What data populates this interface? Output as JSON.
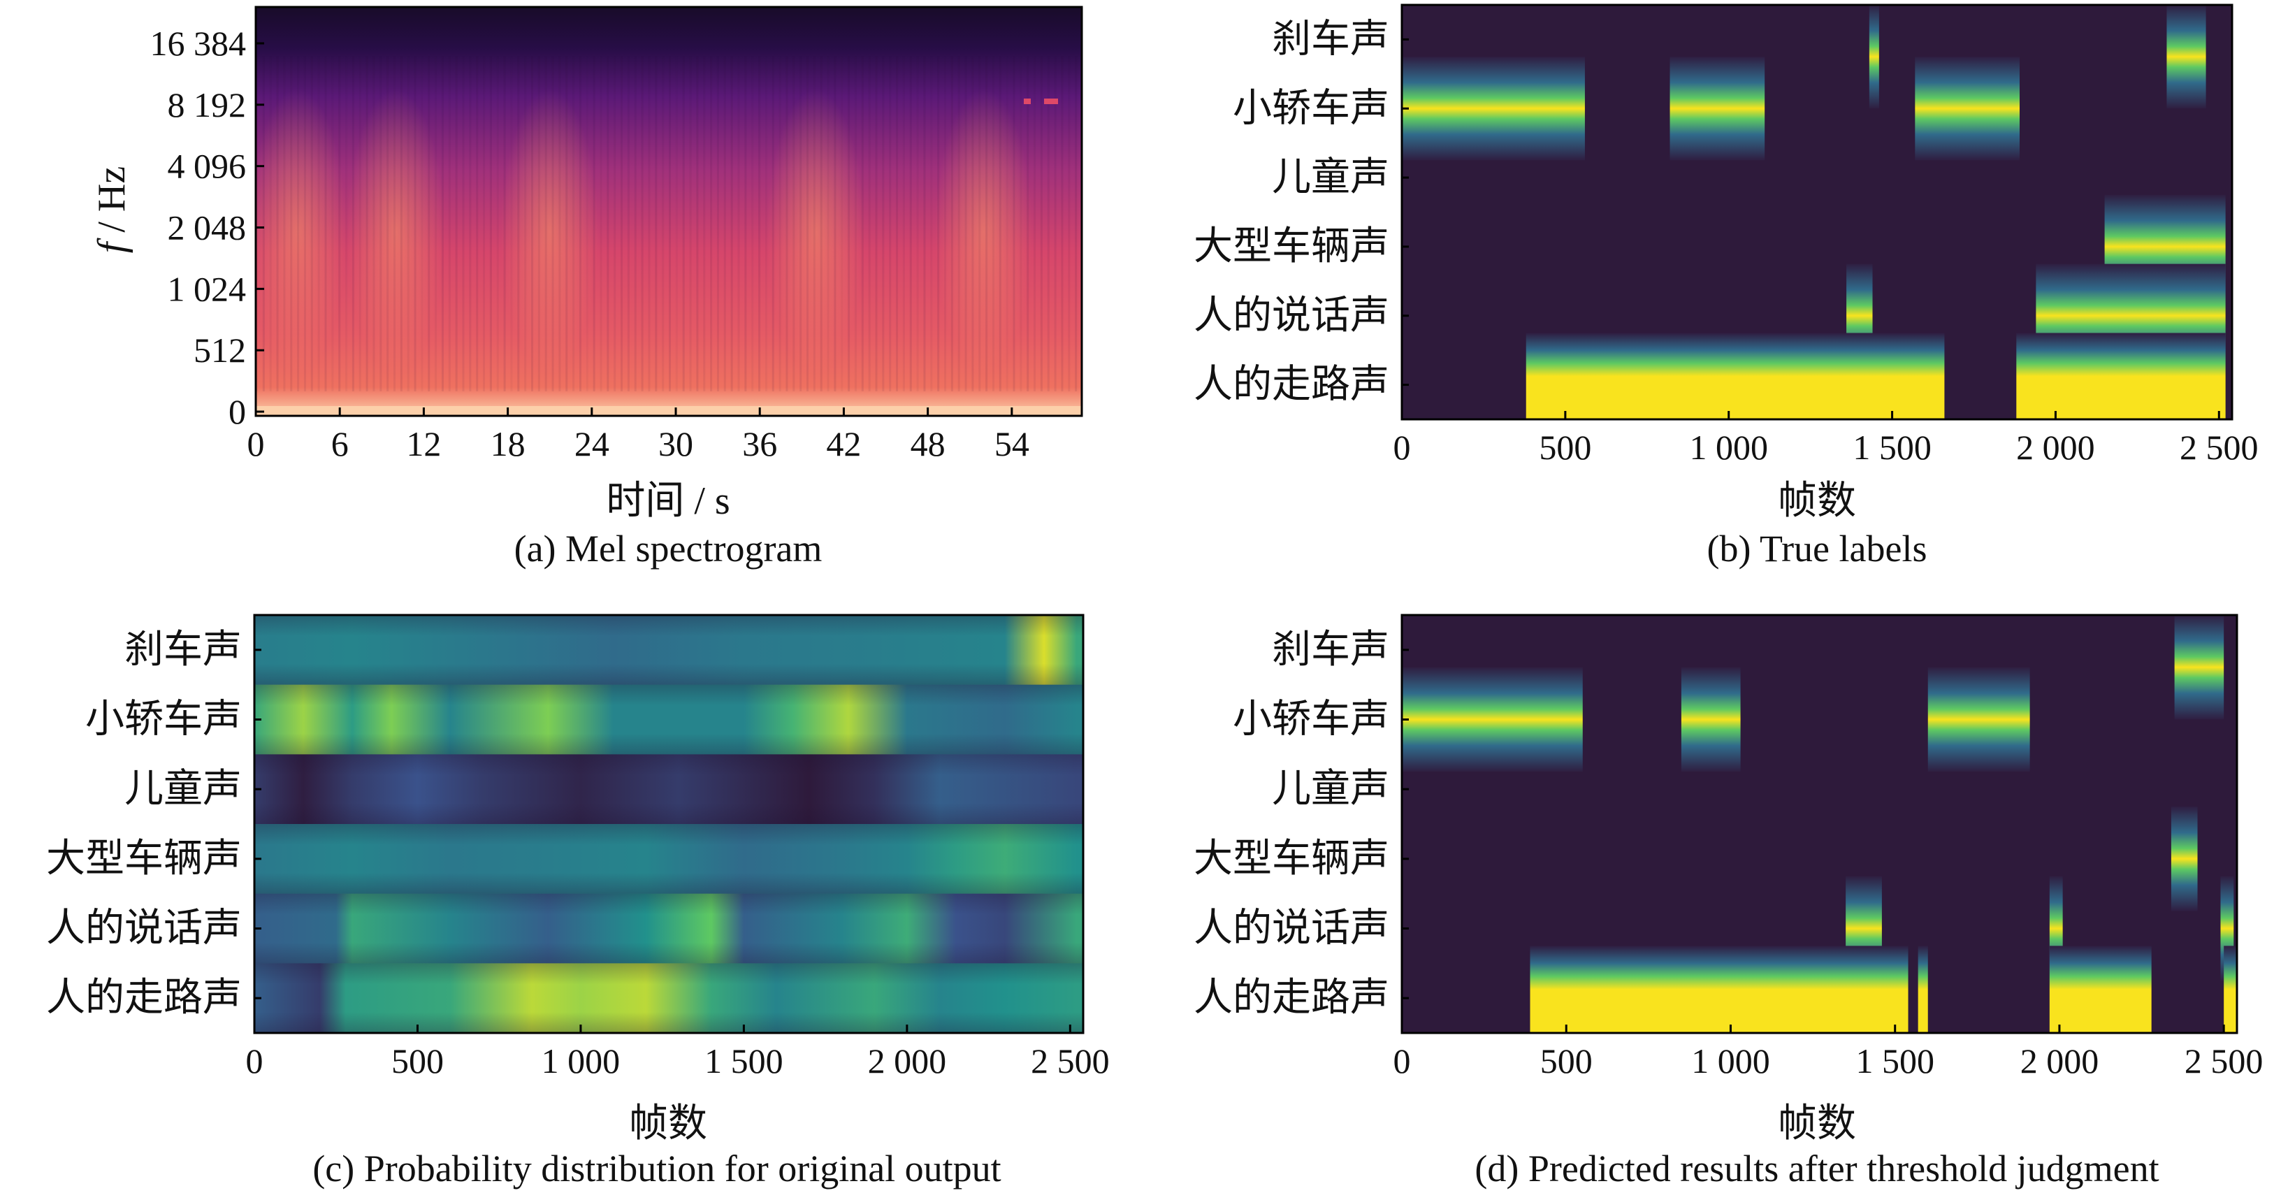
{
  "colors": {
    "background": "#ffffff",
    "viridis_low": "#2e1a3b",
    "viridis_high": "#f9e31e",
    "magma_low": "#120b1c",
    "magma_high": "#fbe7c5"
  },
  "chart_data": [
    {
      "id": "a",
      "type": "heatmap",
      "caption": "(a) Mel spectrogram",
      "xlabel": "时间 / s",
      "ylabel": "f / Hz",
      "ylabel_italic_part": "f",
      "ylabel_rest": " / Hz",
      "xlim": [
        0,
        59
      ],
      "xticks": [
        "0",
        "6",
        "12",
        "18",
        "24",
        "30",
        "36",
        "42",
        "48",
        "54"
      ],
      "xtick_values": [
        0,
        6,
        12,
        18,
        24,
        30,
        36,
        42,
        48,
        54
      ],
      "yticks": [
        "0",
        "512",
        "1 024",
        "2 048",
        "4 096",
        "8 192",
        "16 384"
      ],
      "ytick_values": [
        0,
        512,
        1024,
        2048,
        4096,
        8192,
        16384
      ],
      "colormap": "magma",
      "energy_peaks_s": [
        3,
        10,
        21,
        40,
        52
      ]
    },
    {
      "id": "b",
      "type": "heatmap",
      "caption": "(b) True labels",
      "xlabel": "帧数",
      "xlim": [
        0,
        2540
      ],
      "xticks": [
        "0",
        "500",
        "1 000",
        "1 500",
        "2 000",
        "2 500"
      ],
      "xtick_values": [
        0,
        500,
        1000,
        1500,
        2000,
        2500
      ],
      "categories": [
        "刹车声",
        "小轿车声",
        "儿童声",
        "大型车辆声",
        "人的说话声",
        "人的走路声"
      ],
      "colormap": "viridis",
      "active_segments": [
        {
          "category": "刹车声",
          "start": 1430,
          "end": 1460
        },
        {
          "category": "刹车声",
          "start": 2340,
          "end": 2460
        },
        {
          "category": "小轿车声",
          "start": 0,
          "end": 560
        },
        {
          "category": "小轿车声",
          "start": 820,
          "end": 1110
        },
        {
          "category": "小轿车声",
          "start": 1570,
          "end": 1890
        },
        {
          "category": "大型车辆声",
          "start": 2150,
          "end": 2520
        },
        {
          "category": "人的说话声",
          "start": 1360,
          "end": 1440
        },
        {
          "category": "人的说话声",
          "start": 1940,
          "end": 2520
        },
        {
          "category": "人的走路声",
          "start": 380,
          "end": 1660
        },
        {
          "category": "人的走路声",
          "start": 1880,
          "end": 2520
        }
      ]
    },
    {
      "id": "c",
      "type": "heatmap",
      "caption": "(c) Probability distribution for original output",
      "xlabel": "帧数",
      "xlim": [
        0,
        2540
      ],
      "xticks": [
        "0",
        "500",
        "1 000",
        "1 500",
        "2 000",
        "2 500"
      ],
      "xtick_values": [
        0,
        500,
        1000,
        1500,
        2000,
        2500
      ],
      "categories": [
        "刹车声",
        "小轿车声",
        "儿童声",
        "大型车辆声",
        "人的说话声",
        "人的走路声"
      ],
      "colormap": "viridis",
      "probability_profiles": [
        {
          "category": "刹车声",
          "points": [
            [
              0,
              0.42
            ],
            [
              300,
              0.45
            ],
            [
              700,
              0.4
            ],
            [
              1100,
              0.35
            ],
            [
              1500,
              0.4
            ],
            [
              1900,
              0.42
            ],
            [
              2300,
              0.45
            ],
            [
              2420,
              0.95
            ],
            [
              2520,
              0.6
            ]
          ]
        },
        {
          "category": "小轿车声",
          "points": [
            [
              0,
              0.6
            ],
            [
              150,
              0.85
            ],
            [
              300,
              0.55
            ],
            [
              420,
              0.8
            ],
            [
              600,
              0.45
            ],
            [
              900,
              0.8
            ],
            [
              1100,
              0.45
            ],
            [
              1500,
              0.45
            ],
            [
              1650,
              0.65
            ],
            [
              1820,
              0.88
            ],
            [
              2000,
              0.4
            ],
            [
              2300,
              0.35
            ],
            [
              2520,
              0.45
            ]
          ]
        },
        {
          "category": "儿童声",
          "points": [
            [
              0,
              0.15
            ],
            [
              150,
              0.02
            ],
            [
              300,
              0.15
            ],
            [
              500,
              0.25
            ],
            [
              700,
              0.15
            ],
            [
              1000,
              0.05
            ],
            [
              1300,
              0.15
            ],
            [
              1700,
              0.0
            ],
            [
              1900,
              0.1
            ],
            [
              2100,
              0.3
            ],
            [
              2520,
              0.2
            ]
          ]
        },
        {
          "category": "大型车辆声",
          "points": [
            [
              0,
              0.4
            ],
            [
              300,
              0.45
            ],
            [
              600,
              0.4
            ],
            [
              900,
              0.42
            ],
            [
              1200,
              0.45
            ],
            [
              1500,
              0.35
            ],
            [
              1800,
              0.4
            ],
            [
              2000,
              0.45
            ],
            [
              2150,
              0.55
            ],
            [
              2300,
              0.62
            ],
            [
              2520,
              0.5
            ]
          ]
        },
        {
          "category": "人的说话声",
          "points": [
            [
              0,
              0.3
            ],
            [
              250,
              0.35
            ],
            [
              300,
              0.6
            ],
            [
              600,
              0.45
            ],
            [
              900,
              0.3
            ],
            [
              1200,
              0.5
            ],
            [
              1400,
              0.75
            ],
            [
              1500,
              0.3
            ],
            [
              1800,
              0.45
            ],
            [
              2000,
              0.62
            ],
            [
              2150,
              0.25
            ],
            [
              2300,
              0.2
            ],
            [
              2520,
              0.6
            ]
          ]
        },
        {
          "category": "人的走路声",
          "points": [
            [
              0,
              0.3
            ],
            [
              200,
              0.15
            ],
            [
              280,
              0.55
            ],
            [
              600,
              0.6
            ],
            [
              850,
              0.9
            ],
            [
              1000,
              0.85
            ],
            [
              1200,
              0.9
            ],
            [
              1400,
              0.6
            ],
            [
              1600,
              0.45
            ],
            [
              1900,
              0.6
            ],
            [
              2100,
              0.45
            ],
            [
              2300,
              0.5
            ],
            [
              2520,
              0.55
            ]
          ]
        }
      ]
    },
    {
      "id": "d",
      "type": "heatmap",
      "caption": "(d) Predicted results after threshold judgment",
      "xlabel": "帧数",
      "xlim": [
        0,
        2540
      ],
      "xticks": [
        "0",
        "500",
        "1 000",
        "1 500",
        "2 000",
        "2 500"
      ],
      "xtick_values": [
        0,
        500,
        1000,
        1500,
        2000,
        2500
      ],
      "categories": [
        "刹车声",
        "小轿车声",
        "儿童声",
        "大型车辆声",
        "人的说话声",
        "人的走路声"
      ],
      "colormap": "viridis",
      "active_segments": [
        {
          "category": "刹车声",
          "start": 2350,
          "end": 2500
        },
        {
          "category": "小轿车声",
          "start": 0,
          "end": 550
        },
        {
          "category": "小轿车声",
          "start": 850,
          "end": 1030
        },
        {
          "category": "小轿车声",
          "start": 1600,
          "end": 1910
        },
        {
          "category": "大型车辆声",
          "start": 2340,
          "end": 2420
        },
        {
          "category": "人的说话声",
          "start": 1350,
          "end": 1460
        },
        {
          "category": "人的说话声",
          "start": 1970,
          "end": 2010
        },
        {
          "category": "人的说话声",
          "start": 2490,
          "end": 2530
        },
        {
          "category": "人的走路声",
          "start": 390,
          "end": 1540
        },
        {
          "category": "人的走路声",
          "start": 1570,
          "end": 1600
        },
        {
          "category": "人的走路声",
          "start": 1970,
          "end": 2280
        },
        {
          "category": "人的走路声",
          "start": 2500,
          "end": 2540
        }
      ]
    }
  ]
}
